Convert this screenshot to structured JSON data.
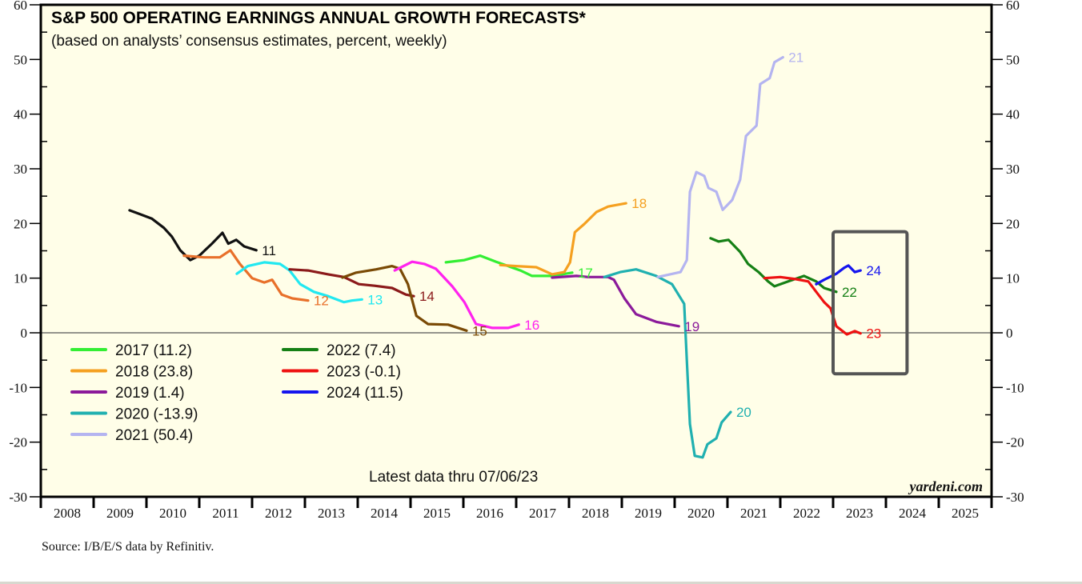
{
  "chart_data": {
    "type": "line",
    "title": "S&P 500 OPERATING EARNINGS ANNUAL GROWTH FORECASTS*",
    "subtitle": "(based on analysts’ consensus estimates, percent, weekly)",
    "xlabel": "",
    "ylabel": "",
    "xlim": [
      2008,
      2026
    ],
    "ylim": [
      -30,
      60
    ],
    "y_ticks": [
      -30,
      -20,
      -10,
      0,
      10,
      20,
      30,
      40,
      50,
      60
    ],
    "x_tick_labels": [
      "2008",
      "2009",
      "2010",
      "2011",
      "2012",
      "2013",
      "2014",
      "2015",
      "2016",
      "2017",
      "2018",
      "2019",
      "2020",
      "2021",
      "2022",
      "2023",
      "2024",
      "2025"
    ],
    "y_axis_both_sides": true,
    "grid": false,
    "zero_line": true,
    "note": "Latest data thru 07/06/23",
    "brand": "yardeni.com",
    "legend_position": "lower-left",
    "highlight_box": {
      "x_range": [
        2023.0,
        2024.4
      ],
      "y_range": [
        -7.5,
        18.5
      ]
    },
    "series": [
      {
        "name": "2011",
        "end_label": "11",
        "legend": false,
        "color": "#111111",
        "points": [
          [
            2009.68,
            22.4
          ],
          [
            2009.88,
            21.7
          ],
          [
            2010.1,
            20.9
          ],
          [
            2010.33,
            19.2
          ],
          [
            2010.48,
            17.6
          ],
          [
            2010.64,
            15.1
          ],
          [
            2010.83,
            13.3
          ],
          [
            2011.0,
            14.1
          ],
          [
            2011.24,
            16.3
          ],
          [
            2011.44,
            18.3
          ],
          [
            2011.55,
            16.3
          ],
          [
            2011.7,
            17.0
          ],
          [
            2011.85,
            15.8
          ],
          [
            2012.08,
            15.1
          ]
        ]
      },
      {
        "name": "2012",
        "end_label": "12",
        "legend": false,
        "color": "#e8702a",
        "points": [
          [
            2010.71,
            14.1
          ],
          [
            2011.09,
            13.8
          ],
          [
            2011.39,
            13.8
          ],
          [
            2011.59,
            15.1
          ],
          [
            2011.77,
            12.6
          ],
          [
            2012.0,
            10.0
          ],
          [
            2012.23,
            9.2
          ],
          [
            2012.38,
            9.7
          ],
          [
            2012.56,
            7.0
          ],
          [
            2012.76,
            6.3
          ],
          [
            2013.06,
            5.9
          ]
        ]
      },
      {
        "name": "2013",
        "end_label": "13",
        "legend": false,
        "color": "#22e8f0",
        "points": [
          [
            2011.71,
            10.8
          ],
          [
            2011.92,
            12.2
          ],
          [
            2012.23,
            12.9
          ],
          [
            2012.53,
            12.6
          ],
          [
            2012.71,
            11.4
          ],
          [
            2012.91,
            8.9
          ],
          [
            2013.17,
            7.5
          ],
          [
            2013.44,
            6.7
          ],
          [
            2013.74,
            5.6
          ],
          [
            2013.89,
            5.9
          ],
          [
            2014.08,
            6.1
          ]
        ]
      },
      {
        "name": "2014",
        "end_label": "14",
        "legend": false,
        "color": "#8b1a1a",
        "points": [
          [
            2012.71,
            11.6
          ],
          [
            2013.06,
            11.4
          ],
          [
            2013.44,
            10.7
          ],
          [
            2013.74,
            10.2
          ],
          [
            2014.02,
            8.9
          ],
          [
            2014.32,
            8.6
          ],
          [
            2014.65,
            8.2
          ],
          [
            2014.91,
            7.0
          ],
          [
            2015.06,
            6.7
          ]
        ]
      },
      {
        "name": "2015",
        "end_label": "15",
        "legend": false,
        "color": "#7a4a05",
        "points": [
          [
            2013.71,
            10.1
          ],
          [
            2013.97,
            11.0
          ],
          [
            2014.35,
            11.6
          ],
          [
            2014.65,
            12.2
          ],
          [
            2014.8,
            11.7
          ],
          [
            2014.95,
            8.9
          ],
          [
            2015.11,
            3.1
          ],
          [
            2015.33,
            1.6
          ],
          [
            2015.71,
            1.5
          ],
          [
            2016.06,
            0.4
          ]
        ]
      },
      {
        "name": "2016",
        "end_label": "16",
        "legend": false,
        "color": "#ff22ee",
        "points": [
          [
            2014.7,
            11.4
          ],
          [
            2015.03,
            13.0
          ],
          [
            2015.26,
            12.6
          ],
          [
            2015.48,
            11.7
          ],
          [
            2015.79,
            8.5
          ],
          [
            2016.02,
            5.6
          ],
          [
            2016.24,
            1.6
          ],
          [
            2016.55,
            0.9
          ],
          [
            2016.85,
            0.9
          ],
          [
            2017.05,
            1.5
          ]
        ]
      },
      {
        "name": "2017",
        "end_label": "17",
        "legend": true,
        "legend_value": "11.2",
        "color": "#33ee33",
        "points": [
          [
            2015.67,
            12.9
          ],
          [
            2016.02,
            13.3
          ],
          [
            2016.32,
            14.1
          ],
          [
            2016.62,
            13.0
          ],
          [
            2017.08,
            11.4
          ],
          [
            2017.3,
            10.4
          ],
          [
            2017.68,
            10.4
          ],
          [
            2018.06,
            11.0
          ]
        ]
      },
      {
        "name": "2018",
        "end_label": "18",
        "legend": true,
        "legend_value": "23.8",
        "color": "#f5a020",
        "points": [
          [
            2016.7,
            12.4
          ],
          [
            2017.0,
            12.2
          ],
          [
            2017.38,
            12.0
          ],
          [
            2017.68,
            10.7
          ],
          [
            2017.91,
            11.1
          ],
          [
            2018.02,
            12.9
          ],
          [
            2018.11,
            18.4
          ],
          [
            2018.29,
            19.9
          ],
          [
            2018.52,
            22.1
          ],
          [
            2018.74,
            23.1
          ],
          [
            2019.08,
            23.7
          ]
        ]
      },
      {
        "name": "2019",
        "end_label": "19",
        "legend": true,
        "legend_value": "1.4",
        "color": "#8b1a9a",
        "points": [
          [
            2017.68,
            10.1
          ],
          [
            2018.14,
            10.4
          ],
          [
            2018.36,
            10.2
          ],
          [
            2018.74,
            10.2
          ],
          [
            2018.85,
            9.7
          ],
          [
            2019.05,
            6.3
          ],
          [
            2019.27,
            3.4
          ],
          [
            2019.65,
            2.0
          ],
          [
            2020.08,
            1.2
          ]
        ]
      },
      {
        "name": "2020",
        "end_label": "20",
        "legend": true,
        "legend_value": "-13.9",
        "color": "#20b0b0",
        "points": [
          [
            2018.67,
            10.2
          ],
          [
            2018.97,
            11.1
          ],
          [
            2019.27,
            11.6
          ],
          [
            2019.65,
            10.4
          ],
          [
            2019.95,
            8.9
          ],
          [
            2020.18,
            5.3
          ],
          [
            2020.23,
            -5.0
          ],
          [
            2020.29,
            -16.7
          ],
          [
            2020.38,
            -22.5
          ],
          [
            2020.53,
            -22.8
          ],
          [
            2020.62,
            -20.4
          ],
          [
            2020.79,
            -19.3
          ],
          [
            2020.89,
            -16.4
          ],
          [
            2021.06,
            -14.5
          ]
        ]
      },
      {
        "name": "2021",
        "end_label": "21",
        "legend": true,
        "legend_value": "50.4",
        "color": "#b4b4f0",
        "points": [
          [
            2019.68,
            10.2
          ],
          [
            2020.11,
            11.1
          ],
          [
            2020.23,
            13.3
          ],
          [
            2020.29,
            25.8
          ],
          [
            2020.41,
            29.4
          ],
          [
            2020.56,
            28.7
          ],
          [
            2020.64,
            26.5
          ],
          [
            2020.79,
            25.8
          ],
          [
            2020.91,
            22.5
          ],
          [
            2021.09,
            24.3
          ],
          [
            2021.24,
            28.0
          ],
          [
            2021.35,
            36.0
          ],
          [
            2021.55,
            37.9
          ],
          [
            2021.62,
            45.5
          ],
          [
            2021.8,
            46.6
          ],
          [
            2021.89,
            49.5
          ],
          [
            2022.05,
            50.4
          ]
        ]
      },
      {
        "name": "2022",
        "end_label": "22",
        "legend": true,
        "legend_value": "7.4",
        "color": "#158015",
        "points": [
          [
            2020.68,
            17.3
          ],
          [
            2020.83,
            16.7
          ],
          [
            2021.02,
            17.0
          ],
          [
            2021.24,
            14.8
          ],
          [
            2021.39,
            12.6
          ],
          [
            2021.59,
            11.1
          ],
          [
            2021.77,
            9.4
          ],
          [
            2021.89,
            8.5
          ],
          [
            2022.15,
            9.4
          ],
          [
            2022.45,
            10.4
          ],
          [
            2022.68,
            9.4
          ],
          [
            2022.83,
            8.2
          ],
          [
            2023.06,
            7.5
          ]
        ]
      },
      {
        "name": "2023",
        "end_label": "23",
        "legend": true,
        "legend_value": "-0.1",
        "color": "#ee1111",
        "points": [
          [
            2021.7,
            10.0
          ],
          [
            2022.0,
            10.2
          ],
          [
            2022.3,
            9.8
          ],
          [
            2022.53,
            9.4
          ],
          [
            2022.68,
            7.5
          ],
          [
            2022.83,
            5.6
          ],
          [
            2022.95,
            4.5
          ],
          [
            2023.06,
            1.2
          ],
          [
            2023.26,
            -0.3
          ],
          [
            2023.41,
            0.3
          ],
          [
            2023.52,
            -0.1
          ]
        ]
      },
      {
        "name": "2024",
        "end_label": "24",
        "legend": true,
        "legend_value": "11.5",
        "color": "#1515ee",
        "points": [
          [
            2022.68,
            8.9
          ],
          [
            2022.83,
            9.7
          ],
          [
            2023.06,
            10.8
          ],
          [
            2023.21,
            11.9
          ],
          [
            2023.29,
            12.3
          ],
          [
            2023.41,
            11.1
          ],
          [
            2023.52,
            11.4
          ]
        ]
      }
    ]
  },
  "footer": {
    "source": "Source: I/B/E/S data by Refinitiv."
  }
}
